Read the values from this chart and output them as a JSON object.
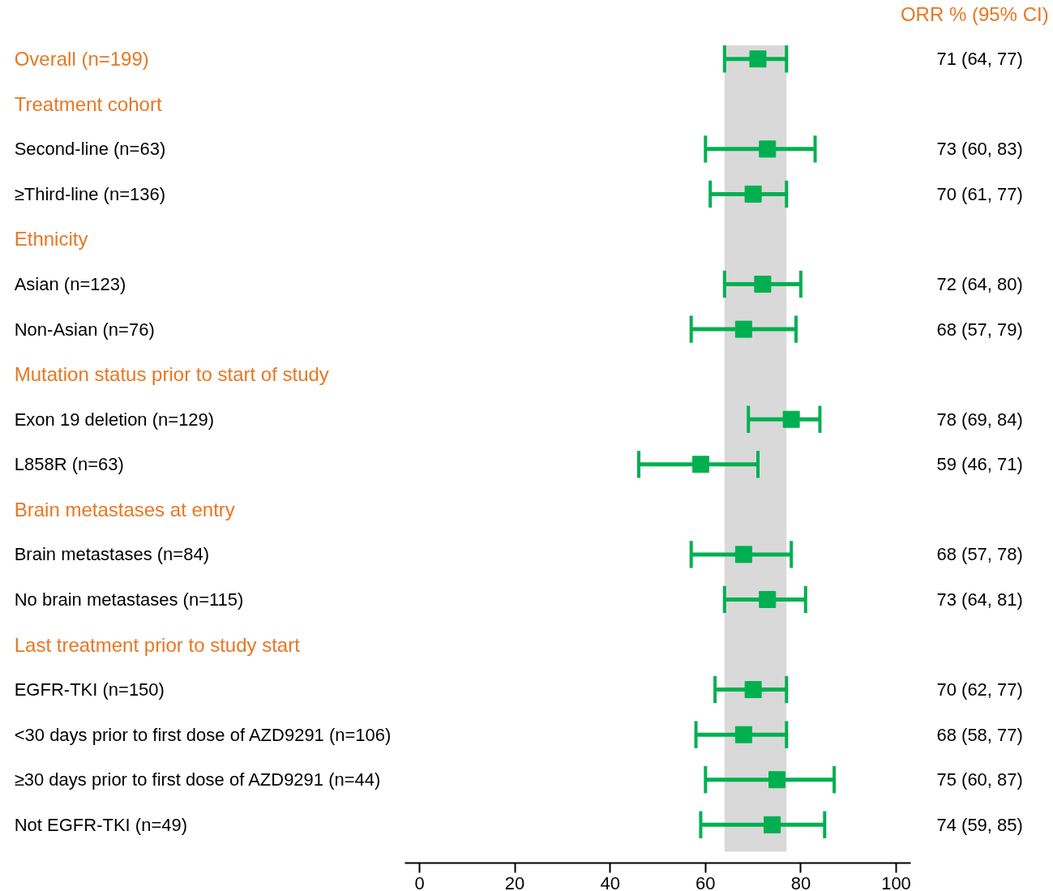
{
  "chart_data": {
    "type": "scatter",
    "orientation": "horizontal",
    "marker": "square",
    "grid": false,
    "tick_labels": "x",
    "categories": [
      "Overall (n=199)",
      "Treatment cohort",
      "Second-line (n=63)",
      "≥Third-line (n=136)",
      "Ethnicity",
      "Asian (n=123)",
      "Non-Asian (n=76)",
      "Mutation status prior to start of study",
      "Exon 19 deletion (n=129)",
      "L858R (n=63)",
      "Brain metastases at entry",
      "Brain metastases (n=84)",
      "No brain metastases (n=115)",
      "Last treatment prior to study start",
      "EGFR-TKI (n=150)",
      "<30 days prior to first dose of AZD9291 (n=106)",
      "≥30 days prior to first dose of AZD9291 (n=44)",
      "Not EGFR-TKI (n=49)"
    ],
    "series": [
      {
        "color": "#00b050",
        "values": [
          71,
          null,
          73,
          70,
          null,
          72,
          68,
          null,
          78,
          59,
          null,
          68,
          73,
          null,
          70,
          68,
          75,
          74
        ],
        "errors": [
          [
            64,
            77
          ],
          null,
          [
            60,
            83
          ],
          [
            61,
            77
          ],
          null,
          [
            64,
            80
          ],
          [
            57,
            79
          ],
          null,
          [
            69,
            84
          ],
          [
            46,
            71
          ],
          null,
          [
            57,
            78
          ],
          [
            64,
            81
          ],
          null,
          [
            62,
            77
          ],
          [
            58,
            77
          ],
          [
            60,
            87
          ],
          [
            59,
            85
          ]
        ],
        "value_labels": [
          "71 (64, 77)",
          null,
          "73 (60, 83)",
          "70 (61, 77)",
          null,
          "72 (64, 80)",
          "68 (57, 79)",
          null,
          "78 (69, 84)",
          "59 (46, 71)",
          null,
          "68 (57, 78)",
          "73 (64, 81)",
          null,
          "70 (62, 77)",
          "68 (58, 77)",
          "75 (60, 87)",
          "74 (59, 85)"
        ]
      }
    ],
    "bands": [
      {
        "axis": "x",
        "from": 64,
        "to": 77,
        "color": "#d9d9d9"
      }
    ],
    "annotations": [
      "ORR % (95% CI)"
    ],
    "xlim": [
      -3,
      103
    ],
    "xticks": [
      0,
      20,
      40,
      60,
      80,
      100
    ]
  }
}
